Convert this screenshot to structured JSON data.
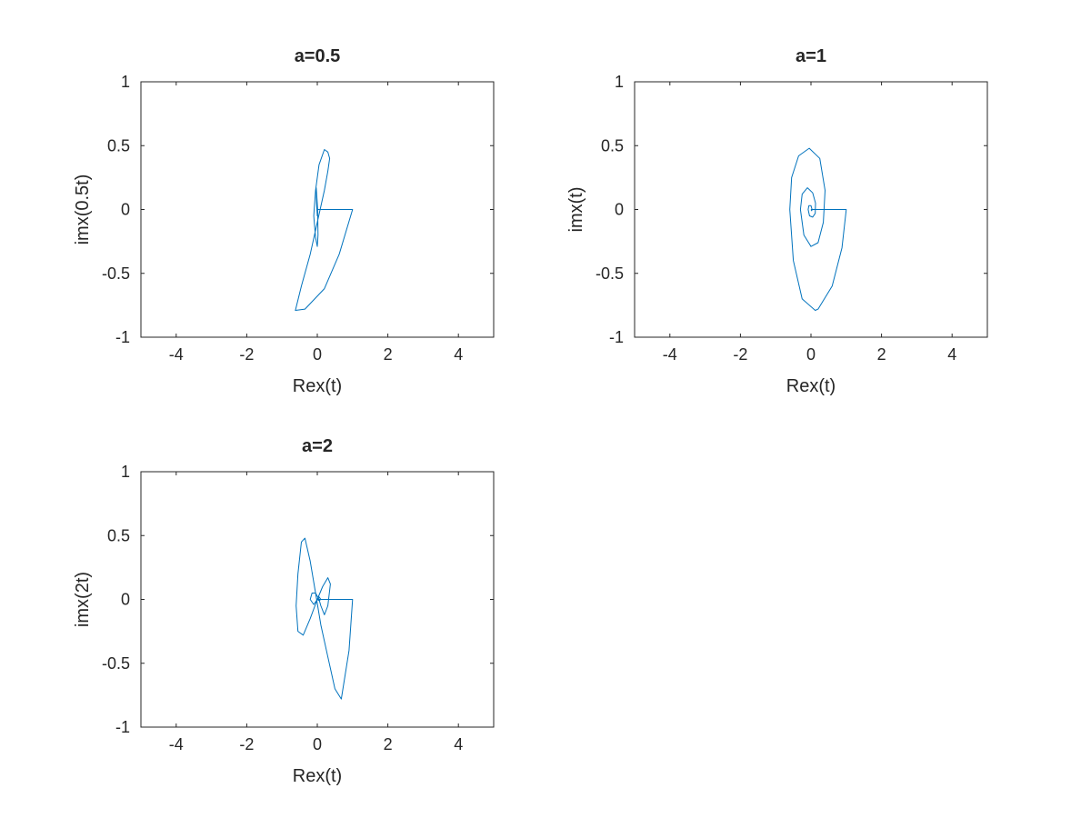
{
  "chart_data": [
    {
      "type": "line",
      "title": "a=0.5",
      "xlabel": "Rex(t)",
      "ylabel": "imx(0.5t)",
      "xlim": [
        -5,
        5
      ],
      "ylim": [
        -1,
        1
      ],
      "xticks": [
        -4,
        -2,
        0,
        2,
        4
      ],
      "yticks": [
        -1,
        -0.5,
        0,
        0.5,
        1
      ],
      "xtick_labels": [
        "-4",
        "-2",
        "0",
        "2",
        "4"
      ],
      "ytick_labels": [
        "-1",
        "-0.5",
        "0",
        "0.5",
        "1"
      ],
      "grid": false,
      "line_color": "#0072bd",
      "a": 0.5,
      "series": [
        {
          "x": [
            0,
            0,
            1,
            1,
            0.62,
            0.2,
            -0.35,
            -0.62,
            -0.45,
            -0.2,
            0.0,
            0.2,
            0.3,
            0.35,
            0.3,
            0.2,
            0.05,
            -0.05,
            -0.1,
            -0.05,
            0.0,
            0.02,
            0.01,
            -0.02,
            -0.03,
            -0.02,
            0.0,
            0.0
          ],
          "y": [
            0,
            0,
            0,
            0,
            -0.35,
            -0.62,
            -0.78,
            -0.79,
            -0.6,
            -0.35,
            -0.1,
            0.15,
            0.3,
            0.4,
            0.45,
            0.47,
            0.35,
            0.15,
            -0.05,
            -0.22,
            -0.29,
            -0.2,
            0.0,
            0.13,
            0.17,
            0.05,
            -0.05,
            0.0
          ]
        }
      ]
    },
    {
      "type": "line",
      "title": "a=1",
      "xlabel": "Rex(t)",
      "ylabel": "imx(t)",
      "xlim": [
        -5,
        5
      ],
      "ylim": [
        -1,
        1
      ],
      "xticks": [
        -4,
        -2,
        0,
        2,
        4
      ],
      "yticks": [
        -1,
        -0.5,
        0,
        0.5,
        1
      ],
      "xtick_labels": [
        "-4",
        "-2",
        "0",
        "2",
        "4"
      ],
      "ytick_labels": [
        "-1",
        "-0.5",
        "0",
        "0.5",
        "1"
      ],
      "grid": false,
      "line_color": "#0072bd",
      "a": 1,
      "series": [
        {
          "x": [
            0,
            0,
            1,
            1,
            0.88,
            0.6,
            0.2,
            0.12,
            -0.25,
            -0.5,
            -0.6,
            -0.55,
            -0.35,
            -0.05,
            0.25,
            0.4,
            0.35,
            0.2,
            0.0,
            -0.2,
            -0.3,
            -0.25,
            -0.1,
            0.05,
            0.13,
            0.12,
            0.05,
            -0.04,
            -0.08,
            -0.06,
            0.0,
            0.03,
            0.02,
            0.0
          ],
          "y": [
            0,
            0,
            0,
            0,
            -0.3,
            -0.6,
            -0.78,
            -0.79,
            -0.7,
            -0.4,
            0.0,
            0.25,
            0.42,
            0.48,
            0.4,
            0.15,
            -0.1,
            -0.26,
            -0.29,
            -0.2,
            0.0,
            0.12,
            0.17,
            0.13,
            0.05,
            -0.03,
            -0.06,
            -0.05,
            0.0,
            0.03,
            0.03,
            0.0,
            -0.01,
            0.0
          ]
        }
      ]
    },
    {
      "type": "line",
      "title": "a=2",
      "xlabel": "Rex(t)",
      "ylabel": "imx(2t)",
      "xlim": [
        -5,
        5
      ],
      "ylim": [
        -1,
        1
      ],
      "xticks": [
        -4,
        -2,
        0,
        2,
        4
      ],
      "yticks": [
        -1,
        -0.5,
        0,
        0.5,
        1
      ],
      "xtick_labels": [
        "-4",
        "-2",
        "0",
        "2",
        "4"
      ],
      "ytick_labels": [
        "-1",
        "-0.5",
        "0",
        "0.5",
        "1"
      ],
      "grid": false,
      "line_color": "#0072bd",
      "a": 2,
      "series": [
        {
          "x": [
            0,
            0,
            1,
            1,
            0.9,
            0.68,
            0.5,
            0.3,
            0.1,
            -0.05,
            -0.2,
            -0.35,
            -0.45,
            -0.55,
            -0.6,
            -0.55,
            -0.4,
            -0.2,
            0.0,
            0.15,
            0.3,
            0.37,
            0.3,
            0.2,
            0.1,
            0.05,
            -0.05,
            -0.15,
            -0.2,
            -0.1,
            0.0,
            0.05,
            0.1,
            0.05,
            0.0
          ],
          "y": [
            0,
            0,
            0,
            0,
            -0.4,
            -0.78,
            -0.7,
            -0.45,
            -0.2,
            0.05,
            0.3,
            0.48,
            0.45,
            0.2,
            -0.05,
            -0.25,
            -0.28,
            -0.15,
            0.0,
            0.1,
            0.17,
            0.12,
            -0.05,
            -0.12,
            -0.05,
            0.0,
            0.05,
            0.05,
            0.0,
            -0.04,
            0.0,
            0.02,
            0.0,
            -0.01,
            0.0
          ]
        }
      ]
    }
  ]
}
